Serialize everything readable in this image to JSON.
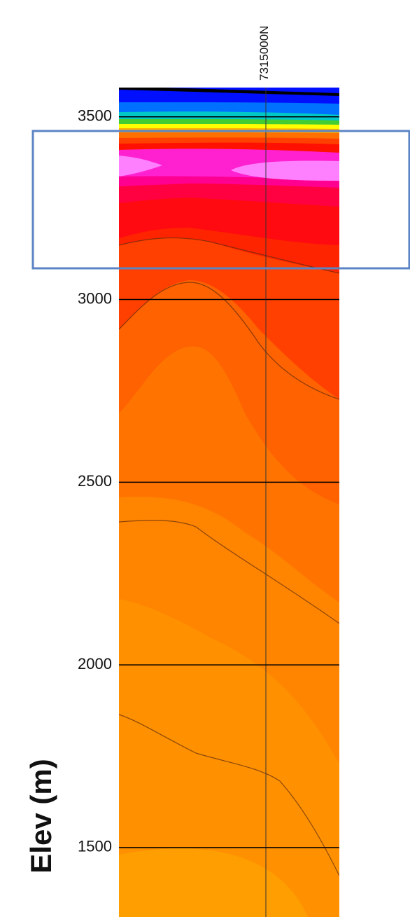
{
  "chart_data": {
    "type": "contour",
    "y_label": "Elev (m)",
    "x_marker": "7315000N",
    "ylim": [
      1310,
      3580
    ],
    "yticks": [
      1500,
      2000,
      2500,
      3000,
      3500
    ],
    "grid": true
  }
}
